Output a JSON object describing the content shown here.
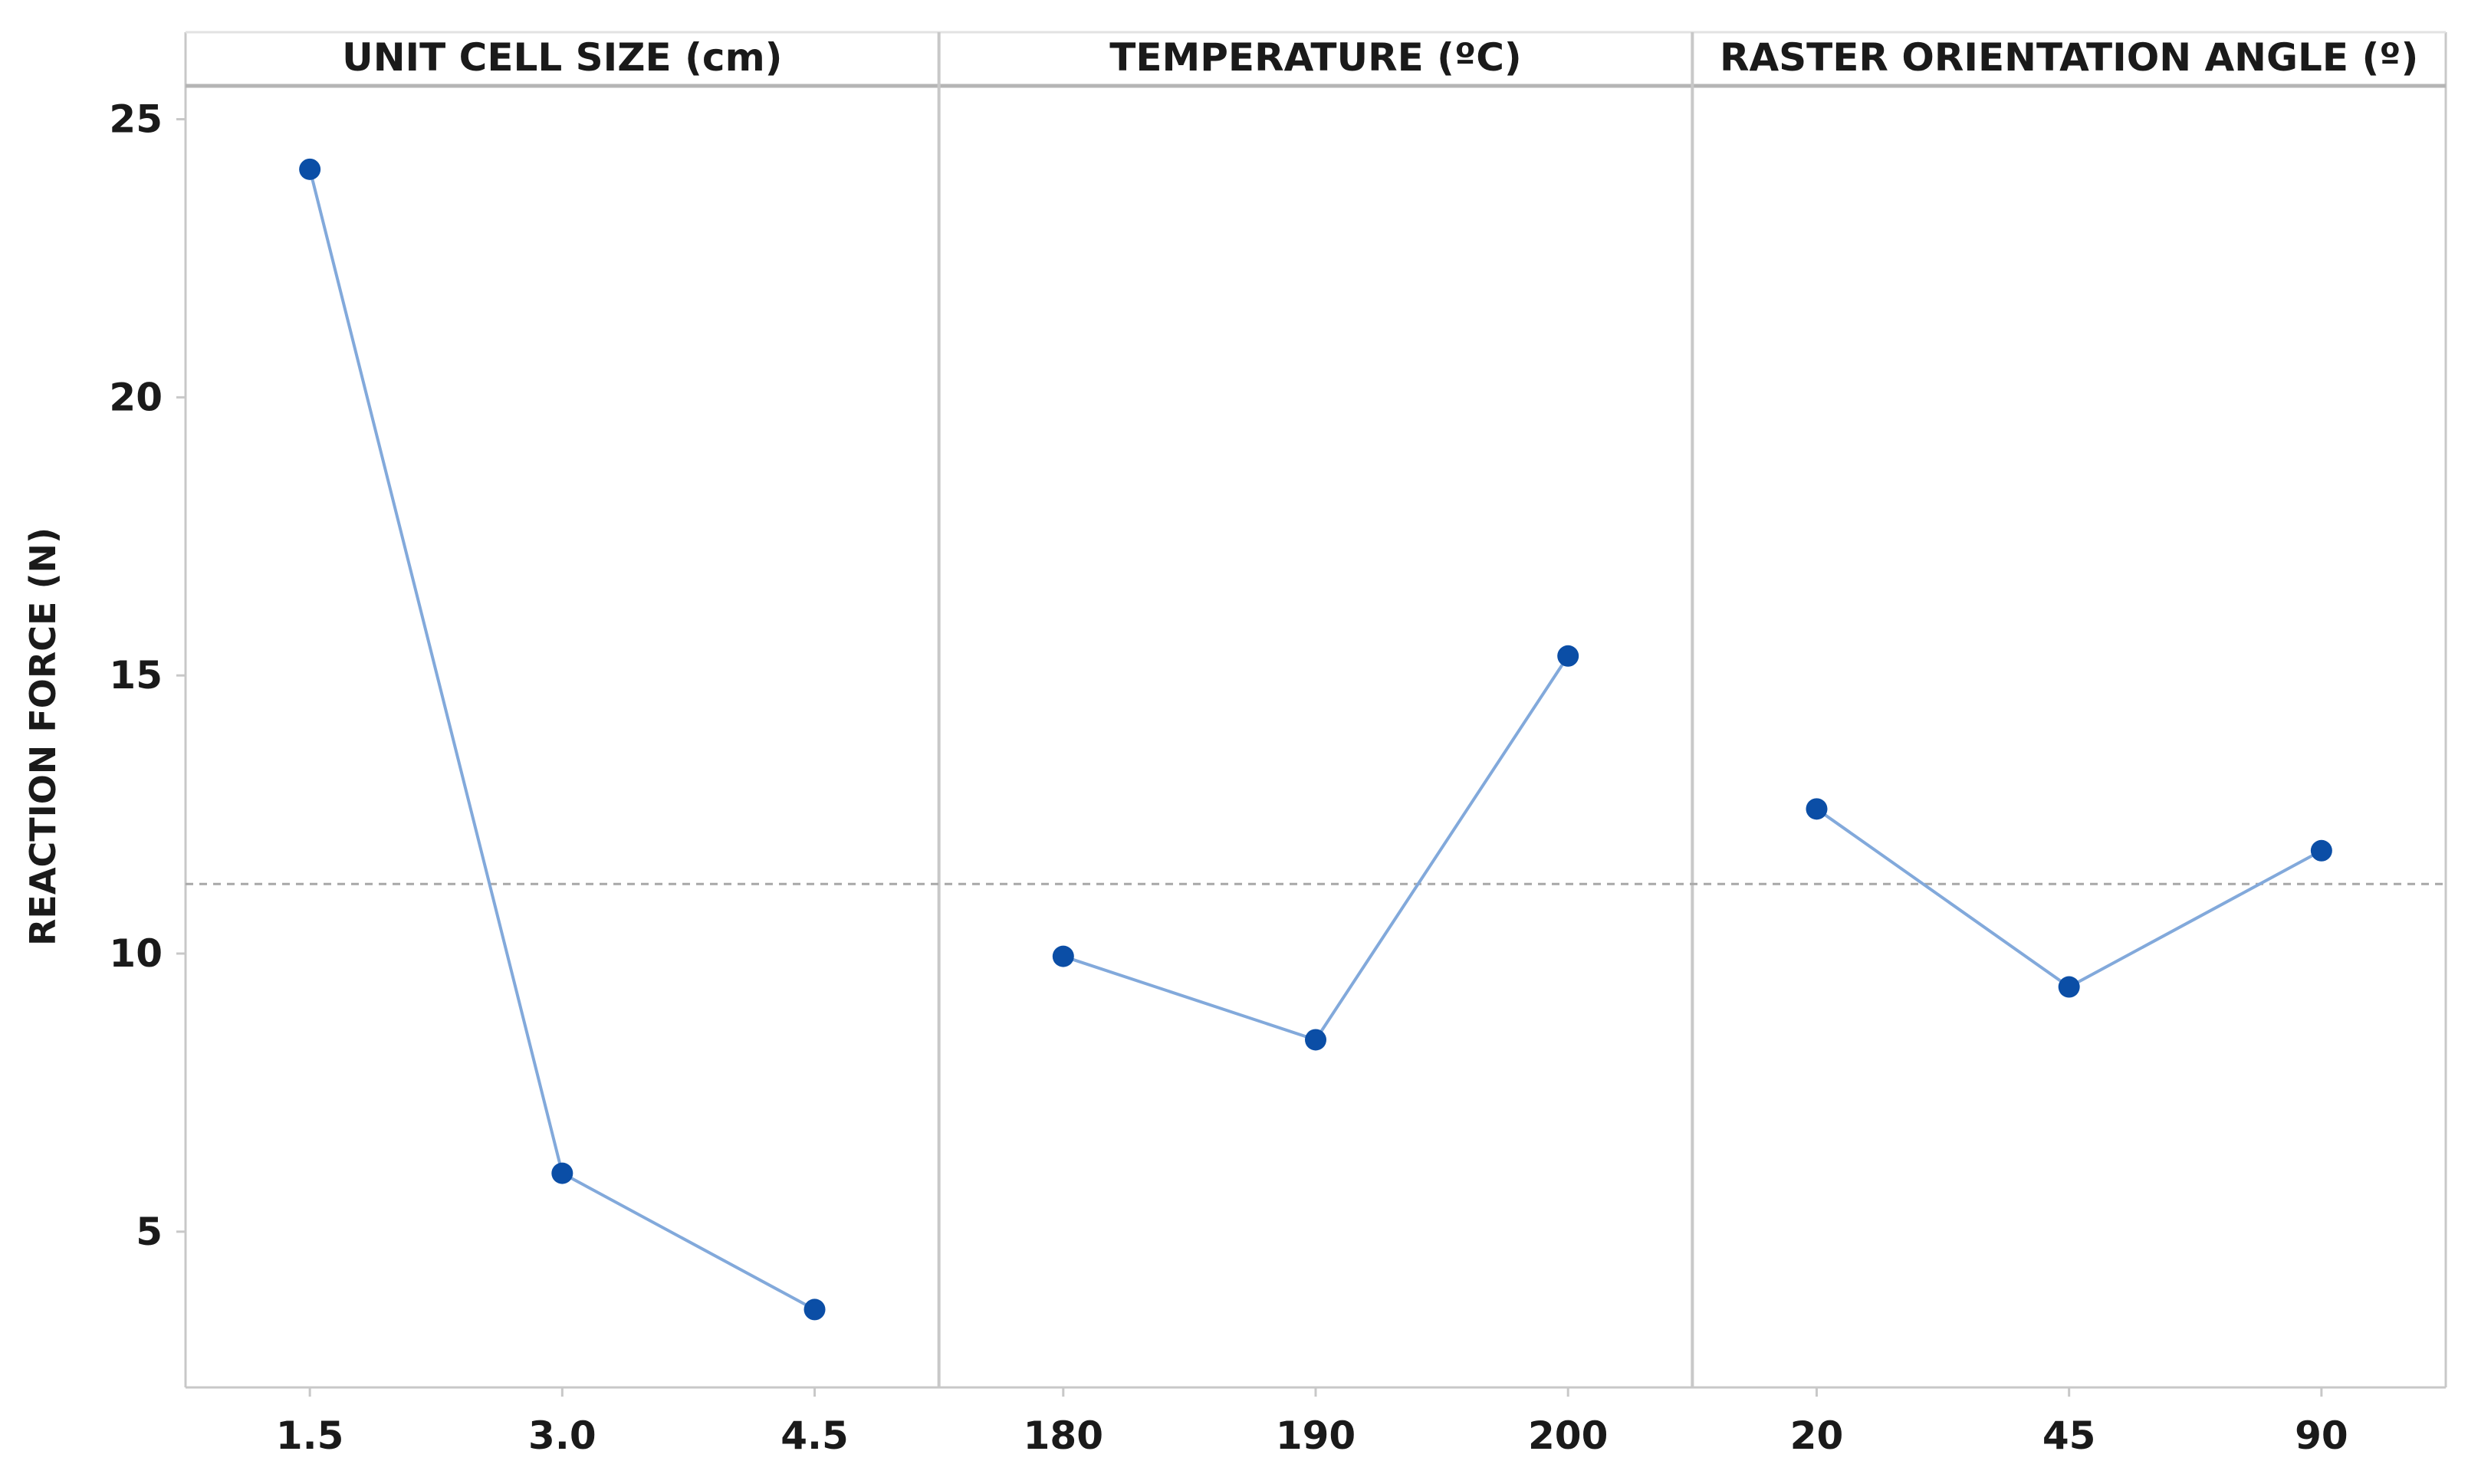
{
  "chart_data": {
    "type": "line",
    "title": "",
    "ylabel": "REACTION FORCE (N)",
    "ylim": [
      2.2,
      25.6
    ],
    "yticks": [
      5,
      10,
      15,
      20,
      25
    ],
    "mean_line": 11.25,
    "colors": {
      "series": "#82a9db",
      "marker": "#0b4ea6",
      "frame": "#c8c8c8",
      "mean": "#a8a8a8",
      "text": "#1a1a1a"
    },
    "panels": [
      {
        "name": "UNIT CELL SIZE (cm)",
        "categories": [
          "1.5",
          "3.0",
          "4.5"
        ],
        "values": [
          24.1,
          6.05,
          3.6
        ]
      },
      {
        "name": "TEMPERATURE (ºC)",
        "categories": [
          "180",
          "190",
          "200"
        ],
        "values": [
          9.95,
          8.45,
          15.35
        ]
      },
      {
        "name": "RASTER ORIENTATION ANGLE (º)",
        "categories": [
          "20",
          "45",
          "90"
        ],
        "values": [
          12.6,
          9.4,
          11.85
        ]
      }
    ]
  }
}
